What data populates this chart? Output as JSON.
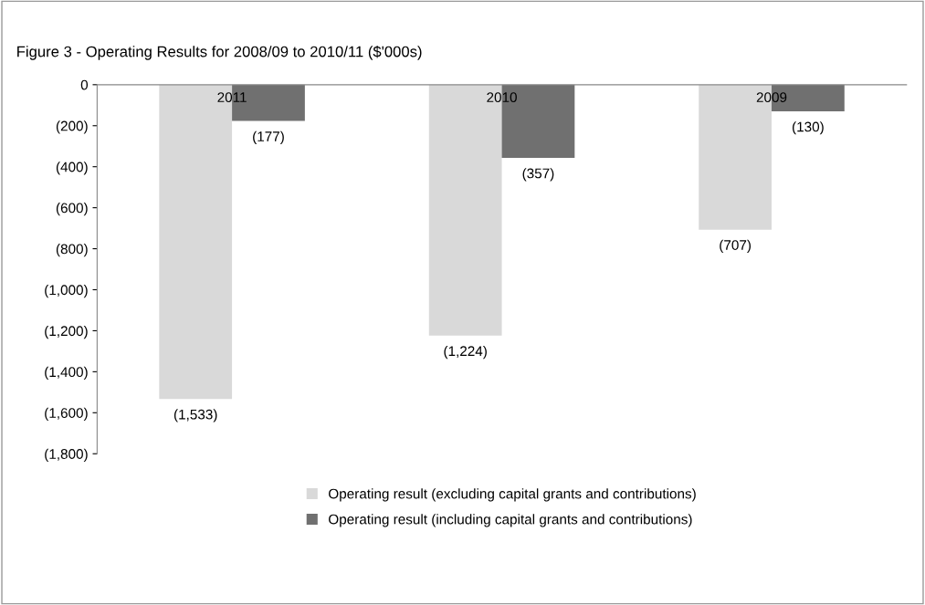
{
  "chart_data": {
    "type": "bar",
    "title": "Figure 3 - Operating Results for 2008/09 to 2010/11 ($'000s)",
    "categories": [
      "2011",
      "2010",
      "2009"
    ],
    "series": [
      {
        "name": "Operating result (excluding capital grants and contributions)",
        "color": "#d9d9d9",
        "values": [
          -1533,
          -1224,
          -707
        ],
        "value_labels": [
          "(1,533)",
          "(1,224)",
          "(707)"
        ]
      },
      {
        "name": "Operating result (including capital grants and contributions)",
        "color": "#707070",
        "values": [
          -177,
          -357,
          -130
        ],
        "value_labels": [
          "(177)",
          "(357)",
          "(130)"
        ]
      }
    ],
    "ylim": [
      -1800,
      0
    ],
    "yticks": [
      0,
      {
        "value": -200,
        "label": "(200)"
      },
      {
        "value": -400,
        "label": "(400)"
      },
      {
        "value": -600,
        "label": "(600)"
      },
      {
        "value": -800,
        "label": "(800)"
      },
      {
        "value": -1000,
        "label": "(1,000)"
      },
      {
        "value": -1200,
        "label": "(1,200)"
      },
      {
        "value": -1400,
        "label": "(1,400)"
      },
      {
        "value": -1600,
        "label": "(1,600)"
      },
      {
        "value": -1800,
        "label": "(1,800)"
      }
    ],
    "grid": false,
    "legend": "bottom"
  }
}
